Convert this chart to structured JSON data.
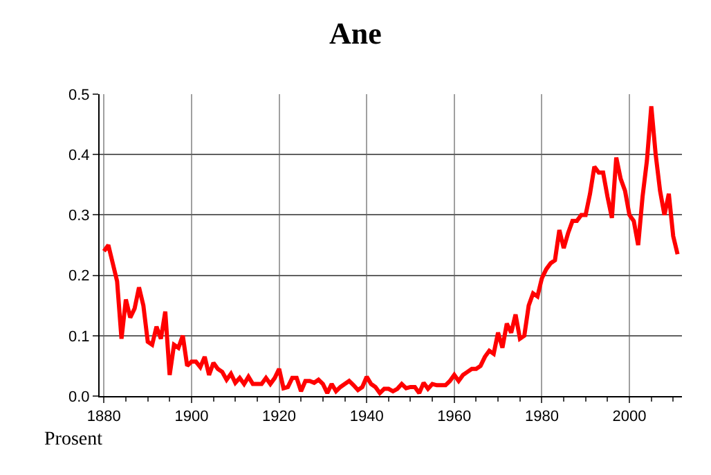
{
  "chart_data": {
    "type": "line",
    "title": "Ane",
    "ylabel": "Prosent",
    "x": [
      1880,
      1881,
      1882,
      1883,
      1884,
      1885,
      1886,
      1887,
      1888,
      1889,
      1890,
      1891,
      1892,
      1893,
      1894,
      1895,
      1896,
      1897,
      1898,
      1899,
      1900,
      1901,
      1902,
      1903,
      1904,
      1905,
      1906,
      1907,
      1908,
      1909,
      1910,
      1911,
      1912,
      1913,
      1914,
      1915,
      1916,
      1917,
      1918,
      1919,
      1920,
      1921,
      1922,
      1923,
      1924,
      1925,
      1926,
      1927,
      1928,
      1929,
      1930,
      1931,
      1932,
      1933,
      1934,
      1935,
      1936,
      1937,
      1938,
      1939,
      1940,
      1941,
      1942,
      1943,
      1944,
      1945,
      1946,
      1947,
      1948,
      1949,
      1950,
      1951,
      1952,
      1953,
      1954,
      1955,
      1956,
      1957,
      1958,
      1959,
      1960,
      1961,
      1962,
      1963,
      1964,
      1965,
      1966,
      1967,
      1968,
      1969,
      1970,
      1971,
      1972,
      1973,
      1974,
      1975,
      1976,
      1977,
      1978,
      1979,
      1980,
      1981,
      1982,
      1983,
      1984,
      1985,
      1986,
      1987,
      1988,
      1989,
      1990,
      1991,
      1992,
      1993,
      1994,
      1995,
      1996,
      1997,
      1998,
      1999,
      2000,
      2001,
      2002,
      2003,
      2004,
      2005,
      2006,
      2007,
      2008,
      2009,
      2010,
      2011
    ],
    "series": [
      {
        "color": "#ff0000",
        "values": [
          0.24,
          0.25,
          0.22,
          0.19,
          0.095,
          0.16,
          0.13,
          0.145,
          0.18,
          0.15,
          0.09,
          0.085,
          0.115,
          0.095,
          0.14,
          0.035,
          0.085,
          0.08,
          0.1,
          0.05,
          0.057,
          0.057,
          0.048,
          0.065,
          0.035,
          0.055,
          0.045,
          0.04,
          0.027,
          0.037,
          0.022,
          0.03,
          0.02,
          0.032,
          0.02,
          0.02,
          0.02,
          0.03,
          0.02,
          0.03,
          0.045,
          0.013,
          0.015,
          0.03,
          0.03,
          0.008,
          0.025,
          0.025,
          0.022,
          0.027,
          0.02,
          0.005,
          0.02,
          0.008,
          0.015,
          0.02,
          0.025,
          0.018,
          0.01,
          0.015,
          0.032,
          0.02,
          0.015,
          0.005,
          0.012,
          0.012,
          0.008,
          0.012,
          0.02,
          0.013,
          0.015,
          0.015,
          0.005,
          0.022,
          0.012,
          0.02,
          0.018,
          0.018,
          0.018,
          0.025,
          0.035,
          0.025,
          0.035,
          0.04,
          0.045,
          0.045,
          0.05,
          0.065,
          0.075,
          0.07,
          0.105,
          0.08,
          0.12,
          0.105,
          0.135,
          0.095,
          0.1,
          0.15,
          0.17,
          0.165,
          0.195,
          0.21,
          0.22,
          0.225,
          0.275,
          0.245,
          0.27,
          0.29,
          0.29,
          0.3,
          0.3,
          0.335,
          0.38,
          0.37,
          0.37,
          0.33,
          0.295,
          0.395,
          0.36,
          0.34,
          0.3,
          0.29,
          0.25,
          0.33,
          0.39,
          0.48,
          0.4,
          0.34,
          0.3,
          0.335,
          0.265,
          0.235
        ]
      }
    ],
    "xlim": [
      1879,
      2012
    ],
    "xticks": [
      1880,
      1900,
      1920,
      1940,
      1960,
      1980,
      2000
    ],
    "ylim": [
      0,
      0.5
    ],
    "yticks": [
      {
        "value": 0,
        "label": "0.0"
      },
      0.1,
      0.2,
      0.3,
      0.4,
      0.5
    ],
    "grid": true,
    "marker": "none",
    "line_style": "solid"
  }
}
